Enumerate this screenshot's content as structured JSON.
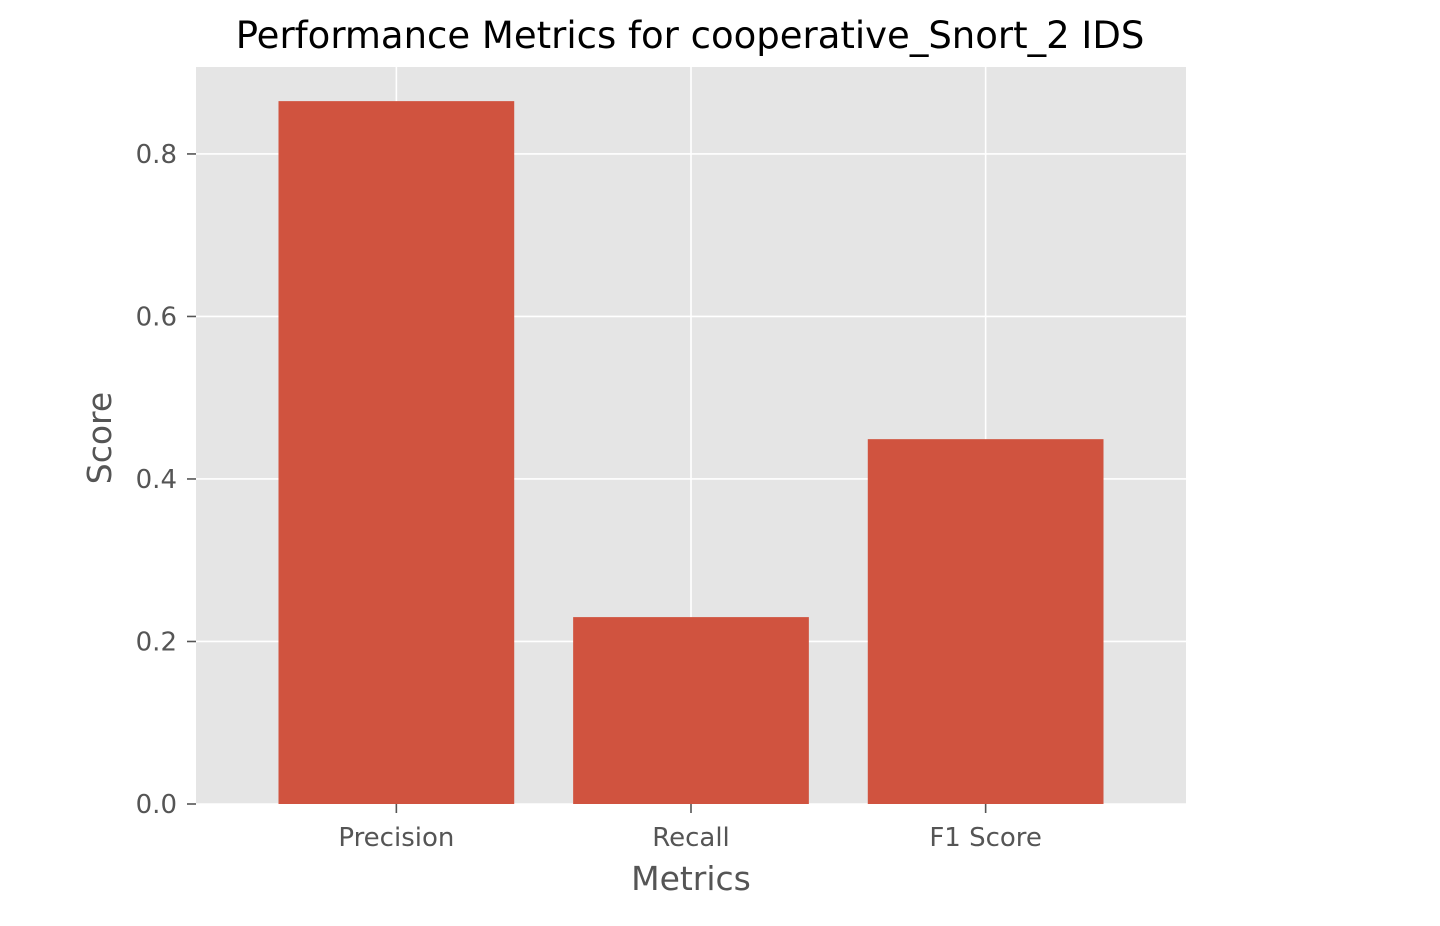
{
  "chart_data": {
    "type": "bar",
    "title": "Performance Metrics for cooperative_Snort_2 IDS",
    "xlabel": "Metrics",
    "ylabel": "Score",
    "categories": [
      "Precision",
      "Recall",
      "F1 Score"
    ],
    "values": [
      0.865,
      0.23,
      0.449
    ],
    "ylim": [
      0,
      0.907
    ],
    "yticks": [
      0.0,
      0.2,
      0.4,
      0.6,
      0.8
    ],
    "ytick_labels": [
      "0.0",
      "0.2",
      "0.4",
      "0.6",
      "0.8"
    ],
    "grid": true,
    "legend": "none",
    "colors": {
      "bar": "#d0533f",
      "plot_background": "#e5e5e5",
      "grid": "#ffffff",
      "tick_text": "#555555"
    }
  }
}
